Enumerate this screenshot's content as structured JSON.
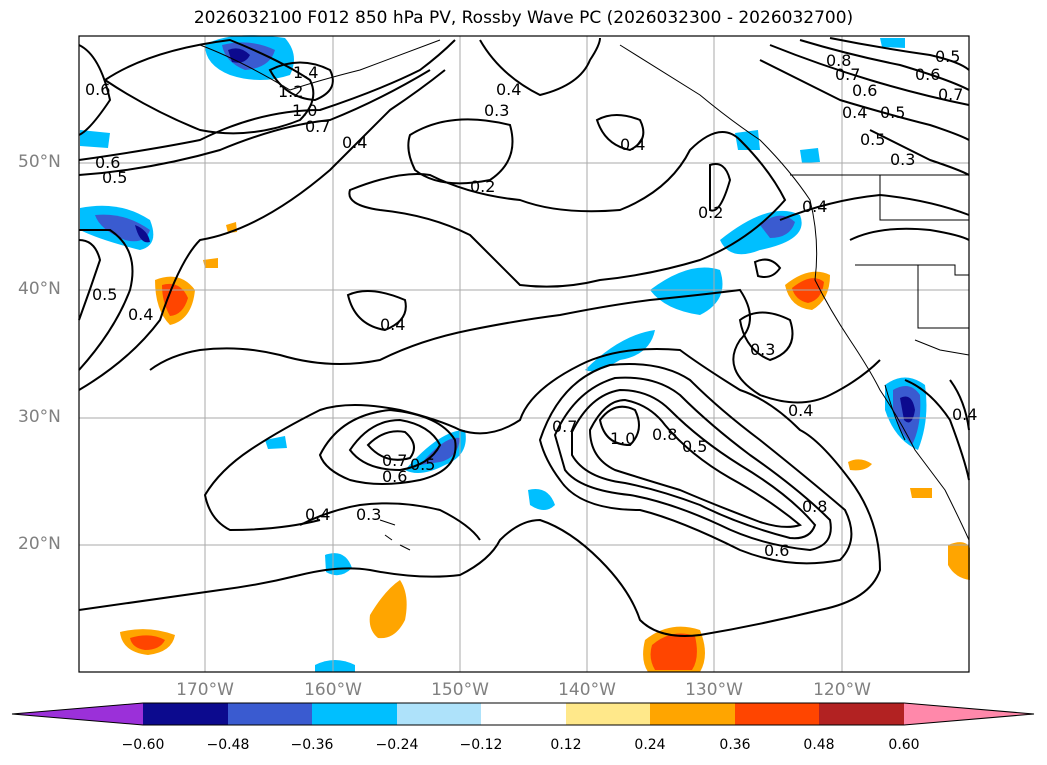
{
  "title": "2026032100 F012 850 hPa PV, Rossby Wave PC (2026032300 - 2026032700)",
  "y_ticks": [
    "50°N",
    "40°N",
    "30°N",
    "20°N"
  ],
  "x_ticks": [
    "170°W",
    "160°W",
    "150°W",
    "140°W",
    "130°W",
    "120°W"
  ],
  "contour_labels": [
    "0.6",
    "0.5",
    "1.4",
    "1.2",
    "1.0",
    "0.7",
    "0.4",
    "0.6",
    "0.5",
    "0.4",
    "0.3",
    "0.2",
    "0.4",
    "0.2",
    "0.4",
    "0.8",
    "0.7",
    "0.6",
    "0.5",
    "0.4",
    "0.5",
    "0.3",
    "0.6",
    "0.7",
    "0.5",
    "0.4",
    "0.4",
    "0.3",
    "0.4",
    "0.7",
    "1.0",
    "0.8",
    "0.5",
    "0.7",
    "0.6",
    "0.5",
    "0.4",
    "0.3",
    "0.8",
    "0.6",
    "0.4"
  ],
  "colorbar": {
    "ticks": [
      "−0.60",
      "−0.48",
      "−0.36",
      "−0.24",
      "−0.12",
      "0.12",
      "0.24",
      "0.36",
      "0.48",
      "0.60"
    ],
    "colors": [
      "#9b30d9",
      "#0c0a8e",
      "#3a5bd0",
      "#00bfff",
      "#aee2fa",
      "#ffffff",
      "#ffe88a",
      "#ffa500",
      "#ff4500",
      "#b22222",
      "#ff88aa"
    ]
  }
}
